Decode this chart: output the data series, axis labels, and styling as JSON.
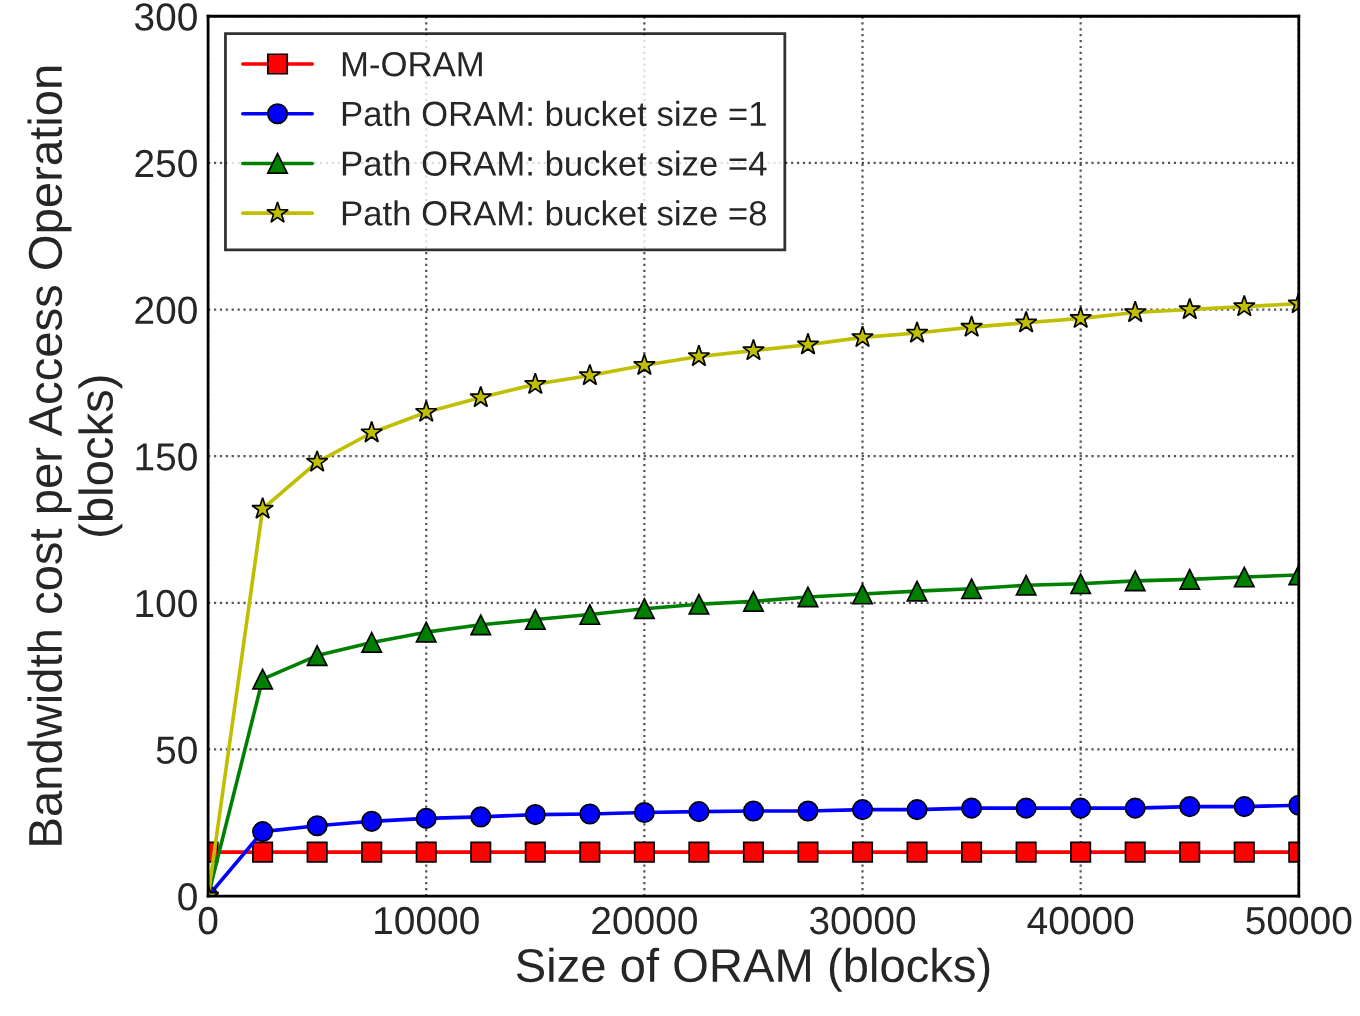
{
  "chart_data": {
    "type": "line",
    "xlabel": "Size of ORAM (blocks)",
    "ylabel": "Bandwidth cost per Access Operation\n(blocks)",
    "x": [
      0,
      2500,
      5000,
      7500,
      10000,
      12500,
      15000,
      17500,
      20000,
      22500,
      25000,
      27500,
      30000,
      32500,
      35000,
      37500,
      40000,
      42500,
      45000,
      47500,
      50000
    ],
    "series": [
      {
        "name": "M-ORAM",
        "color": "#ff0000",
        "marker": "square",
        "values": [
          15,
          15,
          15,
          15,
          15,
          15,
          15,
          15,
          15,
          15,
          15,
          15,
          15,
          15,
          15,
          15,
          15,
          15,
          15,
          15,
          15
        ]
      },
      {
        "name": "Path ORAM: bucket size =1",
        "color": "#0000ff",
        "marker": "circle",
        "values": [
          0,
          22,
          24,
          25.5,
          26.5,
          27,
          27.8,
          28,
          28.5,
          28.8,
          29,
          29,
          29.5,
          29.5,
          30,
          30,
          30,
          30,
          30.5,
          30.5,
          31
        ]
      },
      {
        "name": "Path ORAM: bucket size =4",
        "color": "#008000",
        "marker": "triangle",
        "values": [
          0,
          74,
          82,
          86.5,
          90,
          92.5,
          94.3,
          96,
          98,
          99.5,
          100.5,
          102,
          103,
          104,
          104.8,
          106,
          106.5,
          107.5,
          108,
          108.8,
          109.5
        ]
      },
      {
        "name": "Path ORAM: bucket size =8",
        "color": "#bfbf00",
        "marker": "star",
        "values": [
          0,
          132,
          148,
          158,
          165,
          170,
          174.5,
          177.5,
          181,
          184,
          186,
          188,
          190.5,
          192,
          194,
          195.5,
          197,
          199,
          200,
          201,
          202
        ]
      }
    ],
    "xlim": [
      0,
      50000
    ],
    "xticks": [
      0,
      10000,
      20000,
      30000,
      40000,
      50000
    ],
    "ylim": [
      0,
      300
    ],
    "yticks": [
      0,
      50,
      100,
      150,
      200,
      250,
      300
    ],
    "grid": true,
    "legend": "top left",
    "line_style": "solid"
  }
}
